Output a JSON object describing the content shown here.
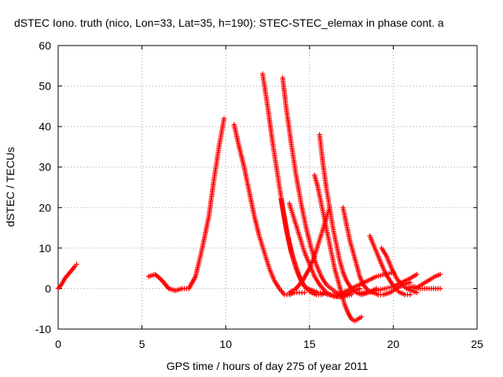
{
  "chart_data": {
    "type": "scatter",
    "title": "dSTEC Iono. truth (nico, Lon=33, Lat=35, h=190): STEC-STEC_elemax in phase cont. a",
    "xlabel": "GPS time / hours of day 275 of year 2011",
    "ylabel": "dSTEC  / TECUs",
    "xlim": [
      0,
      25
    ],
    "ylim": [
      -10,
      60
    ],
    "xticks": [
      0,
      5,
      10,
      15,
      20,
      25
    ],
    "yticks": [
      -10,
      0,
      10,
      20,
      30,
      40,
      50,
      60
    ],
    "grid": true,
    "marker": "plus",
    "color": "#ff0000",
    "series": [
      {
        "x": [
          0.0,
          0.2,
          0.4,
          0.6,
          0.8,
          1.0,
          1.1
        ],
        "y": [
          0,
          1,
          2.5,
          3.5,
          4.5,
          5.5,
          6
        ]
      },
      {
        "x": [
          5.4,
          5.8,
          6.2,
          6.6,
          7.0,
          7.4,
          7.8,
          8.2,
          8.6,
          9.0,
          9.3,
          9.6,
          9.9
        ],
        "y": [
          3,
          3.5,
          2,
          0,
          -0.5,
          0,
          0,
          3,
          10,
          18,
          27,
          35,
          42
        ]
      },
      {
        "x": [
          10.5,
          10.8,
          11.1,
          11.4,
          11.7,
          12.0,
          12.3,
          12.6,
          12.9,
          13.2,
          13.5,
          13.8,
          14.1,
          14.4,
          14.7
        ],
        "y": [
          40.5,
          35,
          30,
          24,
          18,
          13,
          9,
          5,
          2,
          0,
          -1.5,
          -1.5,
          -1,
          -1,
          -1
        ]
      },
      {
        "x": [
          12.2,
          12.5,
          12.8,
          13.1,
          13.4,
          13.7,
          14.0,
          14.3,
          14.6,
          14.9,
          15.2,
          15.5,
          15.8,
          16.1,
          16.4,
          16.7,
          17.0,
          17.5
        ],
        "y": [
          53,
          45,
          36,
          28,
          20,
          13,
          8,
          4,
          1,
          0,
          -0.5,
          -1,
          -1,
          -1.5,
          -1.5,
          -2,
          -2,
          -1.5
        ]
      },
      {
        "x": [
          13.4,
          13.6,
          13.9,
          14.2,
          14.5,
          14.8,
          15.1,
          15.4,
          15.7,
          16.0,
          16.3,
          16.6,
          16.9,
          17.2
        ],
        "y": [
          52,
          45,
          36,
          28,
          21,
          15,
          10,
          6,
          3,
          1,
          0,
          -1,
          -1.5,
          -1.5
        ]
      },
      {
        "x": [
          13.3,
          13.6,
          13.9,
          14.2,
          14.5,
          14.8,
          15.1,
          15.4,
          15.7,
          16.0
        ],
        "y": [
          22,
          15,
          9,
          5,
          2,
          0,
          -1,
          -1.5,
          -1.5,
          -1
        ]
      },
      {
        "x": [
          13.8,
          14.1,
          14.4,
          14.7,
          15.0,
          15.3,
          15.6,
          15.9,
          16.2,
          16.5,
          16.8,
          17.1,
          17.4,
          17.7,
          18.0
        ],
        "y": [
          21,
          17,
          13,
          9,
          6,
          3,
          1,
          -0.5,
          -1.5,
          -2,
          -2,
          -1.5,
          -1,
          -0.5,
          0
        ]
      },
      {
        "x": [
          13.8,
          14.2,
          14.6,
          15.0,
          15.3,
          15.6,
          15.9,
          16.2
        ],
        "y": [
          -1,
          0,
          2,
          5,
          8,
          12,
          16,
          20
        ]
      },
      {
        "x": [
          15.3,
          15.5,
          15.7,
          15.9,
          16.1,
          16.3,
          16.5,
          16.7,
          16.9,
          17.1,
          17.3,
          17.5,
          17.7,
          17.9,
          18.1
        ],
        "y": [
          28,
          25,
          21,
          17,
          13,
          9,
          5,
          2,
          -1,
          -4,
          -6,
          -7.5,
          -8,
          -7.5,
          -7
        ]
      },
      {
        "x": [
          15.6,
          15.8,
          16.0,
          16.2,
          16.4,
          16.6,
          16.8,
          17.0,
          17.2,
          17.5,
          17.8,
          18.1,
          18.5,
          19.0
        ],
        "y": [
          38,
          31,
          25,
          20,
          15,
          11,
          7,
          4,
          2,
          0,
          -1,
          -1.5,
          -1,
          0
        ]
      },
      {
        "x": [
          17.0,
          17.2,
          17.4,
          17.6,
          17.8,
          18.0,
          18.2,
          18.5,
          18.8,
          19.1,
          19.4,
          19.8,
          20.2,
          20.6,
          21.0
        ],
        "y": [
          20,
          16,
          12,
          9,
          6,
          3,
          1,
          -0.5,
          -1,
          -1.5,
          -1.5,
          -1,
          0,
          1,
          1.5
        ]
      },
      {
        "x": [
          18.6,
          18.9,
          19.2,
          19.5,
          19.8,
          20.1,
          20.4,
          20.7,
          21.0
        ],
        "y": [
          13,
          10,
          7,
          4,
          2,
          0,
          -1,
          -1.5,
          -1.5
        ]
      },
      {
        "x": [
          19.3,
          19.6,
          19.9,
          20.2,
          20.5,
          20.8,
          21.1,
          21.4
        ],
        "y": [
          10,
          8,
          5,
          2.5,
          1,
          0,
          -0.5,
          -1
        ]
      },
      {
        "x": [
          16.5,
          17.0,
          17.5,
          18.0,
          18.5,
          19.0,
          19.5,
          20.0
        ],
        "y": [
          -2,
          -1,
          0,
          1,
          2,
          3,
          3.5,
          4
        ]
      },
      {
        "x": [
          18.0,
          18.5,
          19.0,
          19.5,
          20.0,
          20.5,
          21.0,
          21.4
        ],
        "y": [
          -1,
          -1,
          -0.5,
          0,
          0.5,
          1.5,
          2.5,
          3.5
        ]
      },
      {
        "x": [
          20.8,
          21.2,
          21.6,
          22.0,
          22.4,
          22.8
        ],
        "y": [
          0,
          0.5,
          0,
          0,
          0,
          0
        ]
      },
      {
        "x": [
          21.3,
          21.7,
          22.1,
          22.5,
          22.8
        ],
        "y": [
          0,
          1,
          2,
          3,
          3.5
        ]
      }
    ]
  }
}
